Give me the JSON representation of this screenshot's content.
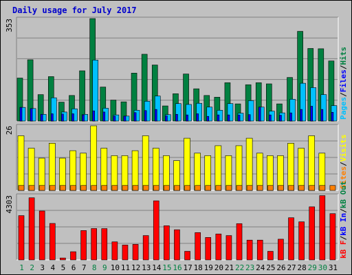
{
  "chart_data": {
    "type": "bar",
    "title": "Daily usage for July 2017",
    "days": [
      1,
      2,
      3,
      4,
      5,
      6,
      7,
      8,
      9,
      10,
      11,
      12,
      13,
      14,
      15,
      16,
      17,
      18,
      19,
      20,
      21,
      22,
      23,
      24,
      25,
      26,
      27,
      28,
      29,
      30,
      31
    ],
    "weekend_days": [
      1,
      2,
      8,
      9,
      15,
      16,
      22,
      23,
      29,
      30
    ],
    "panels": [
      {
        "id": "hits_files_pages",
        "max_label": "353",
        "ylim": [
          0,
          353
        ],
        "legend": [
          {
            "label": "Pages",
            "color": "#00c0ff"
          },
          {
            "label": "/",
            "color": "#000000"
          },
          {
            "label": "Files",
            "color": "#0000ff"
          },
          {
            "label": "/",
            "color": "#000000"
          },
          {
            "label": "Hits",
            "color": "#008040"
          }
        ],
        "series": [
          {
            "name": "Hits",
            "color": "#008040",
            "values": [
              148,
              211,
              91,
              153,
              65,
              88,
              173,
              353,
              117,
              72,
              66,
              165,
              230,
              193,
              52,
              94,
              162,
              111,
              88,
              82,
              132,
              59,
              125,
              132,
              128,
              59,
              150,
              309,
              250,
              249,
              207
            ]
          },
          {
            "name": "Files",
            "color": "#0000ff",
            "values": [
              47,
              43,
              23,
              25,
              24,
              25,
              21,
              35,
              31,
              17,
              17,
              29,
              36,
              40,
              18,
              23,
              21,
              25,
              16,
              21,
              21,
              21,
              22,
              48,
              21,
              20,
              28,
              40,
              51,
              40,
              30
            ]
          },
          {
            "name": "Pages",
            "color": "#00c0ff",
            "values": [
              47,
              43,
              23,
              80,
              31,
              42,
              23,
              210,
              44,
              21,
              17,
              37,
              68,
              86,
              22,
              60,
              57,
              61,
              48,
              37,
              60,
              27,
              70,
              48,
              34,
              28,
              75,
              130,
              115,
              91,
              53
            ]
          }
        ]
      },
      {
        "id": "visits_sites",
        "max_label": "26",
        "ylim": [
          0,
          26
        ],
        "legend": [
          {
            "label": "Sites",
            "color": "#ff8000"
          },
          {
            "label": "/",
            "color": "#000000"
          },
          {
            "label": "Visits",
            "color": "#ffff00"
          }
        ],
        "series": [
          {
            "name": "Visits",
            "color": "#ffff00",
            "values": [
              22,
              17,
              13,
              19,
              13,
              16,
              15,
              26,
              17,
              14,
              14,
              16,
              22,
              17,
              14,
              12,
              21,
              15,
              14,
              18,
              14,
              18,
              21,
              15,
              14,
              14,
              19,
              17,
              22,
              15,
              0
            ]
          },
          {
            "name": "Sites",
            "color": "#ff8000",
            "values": [
              2,
              2,
              2,
              2,
              2,
              2,
              2,
              2,
              2,
              2,
              2,
              2,
              2,
              2,
              2,
              2,
              2,
              2,
              2,
              2,
              2,
              2,
              2,
              2,
              2,
              2,
              2,
              2,
              2,
              2,
              2
            ]
          }
        ]
      },
      {
        "id": "kbytes",
        "max_label": "4303",
        "ylim": [
          0,
          4303
        ],
        "legend": [
          {
            "label": "kB F",
            "color": "#ff0000"
          },
          {
            "label": "/",
            "color": "#000000"
          },
          {
            "label": "kB In",
            "color": "#0000ff"
          },
          {
            "label": "/",
            "color": "#000000"
          },
          {
            "label": "kB Out",
            "color": "#008040"
          }
        ],
        "series": [
          {
            "name": "kB F",
            "color": "#ff0000",
            "values": [
              2948,
              4136,
              3253,
              2427,
              127,
              544,
              1954,
              2087,
              2083,
              1201,
              989,
              1035,
              1620,
              3933,
              2272,
              2008,
              571,
              1818,
              1494,
              1726,
              1620,
              2413,
              1317,
              1317,
              571,
              1378,
              2807,
              2536,
              3532,
              4279,
              3079
            ]
          }
        ]
      }
    ]
  }
}
